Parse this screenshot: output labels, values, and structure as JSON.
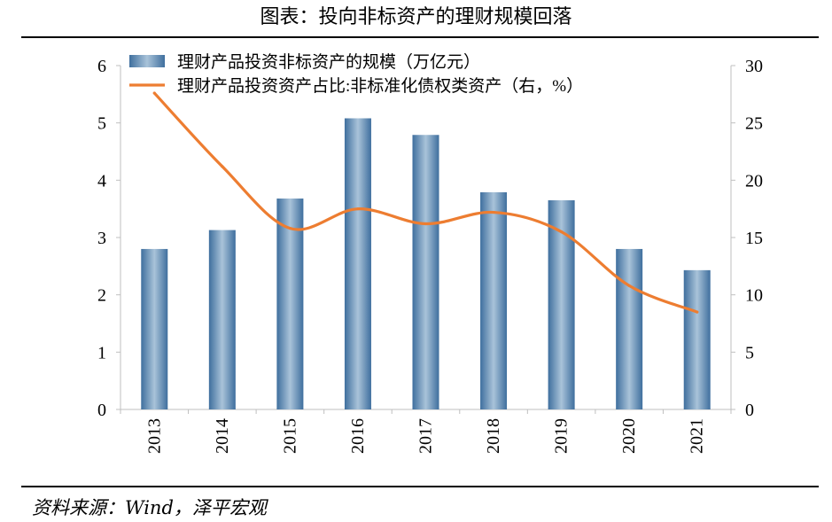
{
  "figure": {
    "title": "图表：投向非标资产的理财规模回落",
    "source": "资料来源：Wind，泽平宏观"
  },
  "chart_data": {
    "type": "bar",
    "categories": [
      "2013",
      "2014",
      "2015",
      "2016",
      "2017",
      "2018",
      "2019",
      "2020",
      "2021"
    ],
    "series": [
      {
        "name": "理财产品投资非标资产的规模（万亿元）",
        "type": "bar",
        "axis": "left",
        "values": [
          2.8,
          3.13,
          3.68,
          5.08,
          4.79,
          3.79,
          3.65,
          2.8,
          2.43
        ],
        "color": "#5E8FB8"
      },
      {
        "name": "理财产品投资资产占比:非标准化债权类资产（右，%）",
        "type": "line",
        "axis": "right",
        "values": [
          27.6,
          21.2,
          15.8,
          17.5,
          16.2,
          17.2,
          15.5,
          10.8,
          8.5
        ],
        "color": "#ED7D31"
      }
    ],
    "y_left": {
      "min": 0,
      "max": 6,
      "ticks": [
        "0",
        "1",
        "2",
        "3",
        "4",
        "5",
        "6"
      ]
    },
    "y_right": {
      "min": 0,
      "max": 30,
      "ticks": [
        "0",
        "5",
        "10",
        "15",
        "20",
        "25",
        "30"
      ]
    },
    "grid": false,
    "legend": "top-left"
  }
}
